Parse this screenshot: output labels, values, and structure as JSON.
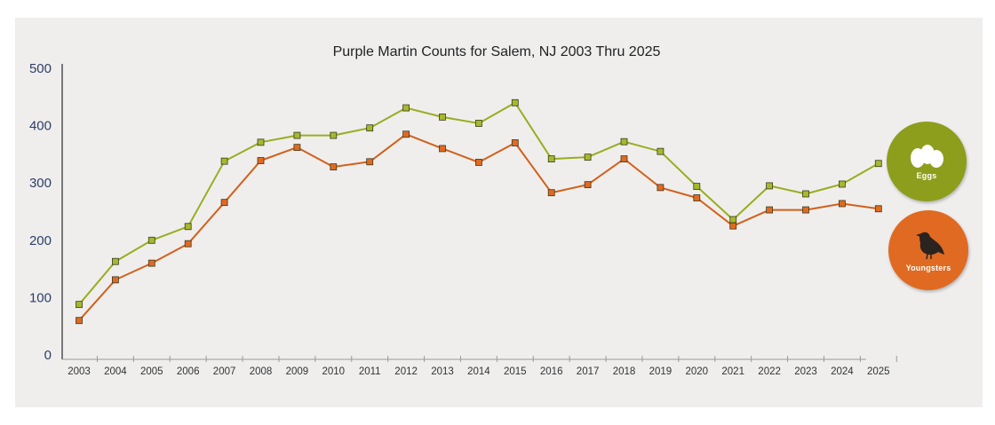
{
  "chart_data": {
    "type": "line",
    "title": "Purple Martin Counts for Salem, NJ 2003 Thru 2025",
    "xlabel": "",
    "ylabel": "",
    "ylim": [
      0,
      500
    ],
    "yticks": [
      "0",
      "100",
      "200",
      "300",
      "400",
      "500"
    ],
    "grid": false,
    "legend_position": "right",
    "categories": [
      "2003",
      "2004",
      "2005",
      "2006",
      "2007",
      "2008",
      "2009",
      "2010",
      "2011",
      "2012",
      "2013",
      "2014",
      "2015",
      "2016",
      "2017",
      "2018",
      "2019",
      "2020",
      "2021",
      "2022",
      "2023",
      "2024",
      "2025"
    ],
    "series": [
      {
        "name": "Eggs",
        "color": "#99ad1f",
        "marker_color": "#a6b82c",
        "values": [
          88,
          163,
          200,
          224,
          338,
          371,
          383,
          383,
          396,
          431,
          415,
          404,
          440,
          342,
          345,
          372,
          355,
          294,
          236,
          295,
          281,
          298,
          334
        ]
      },
      {
        "name": "Youngsters",
        "color": "#d2601a",
        "marker_color": "#e06a22",
        "values": [
          60,
          131,
          160,
          194,
          266,
          339,
          362,
          328,
          337,
          385,
          360,
          336,
          370,
          283,
          297,
          342,
          292,
          274,
          225,
          253,
          253,
          264,
          255
        ]
      }
    ]
  },
  "legend": {
    "eggs": {
      "label": "Eggs",
      "icon": "eggs-icon",
      "color": "#8d9e1c"
    },
    "youngsters": {
      "label": "Youngsters",
      "icon": "bird-icon",
      "color": "#e06a22"
    }
  }
}
